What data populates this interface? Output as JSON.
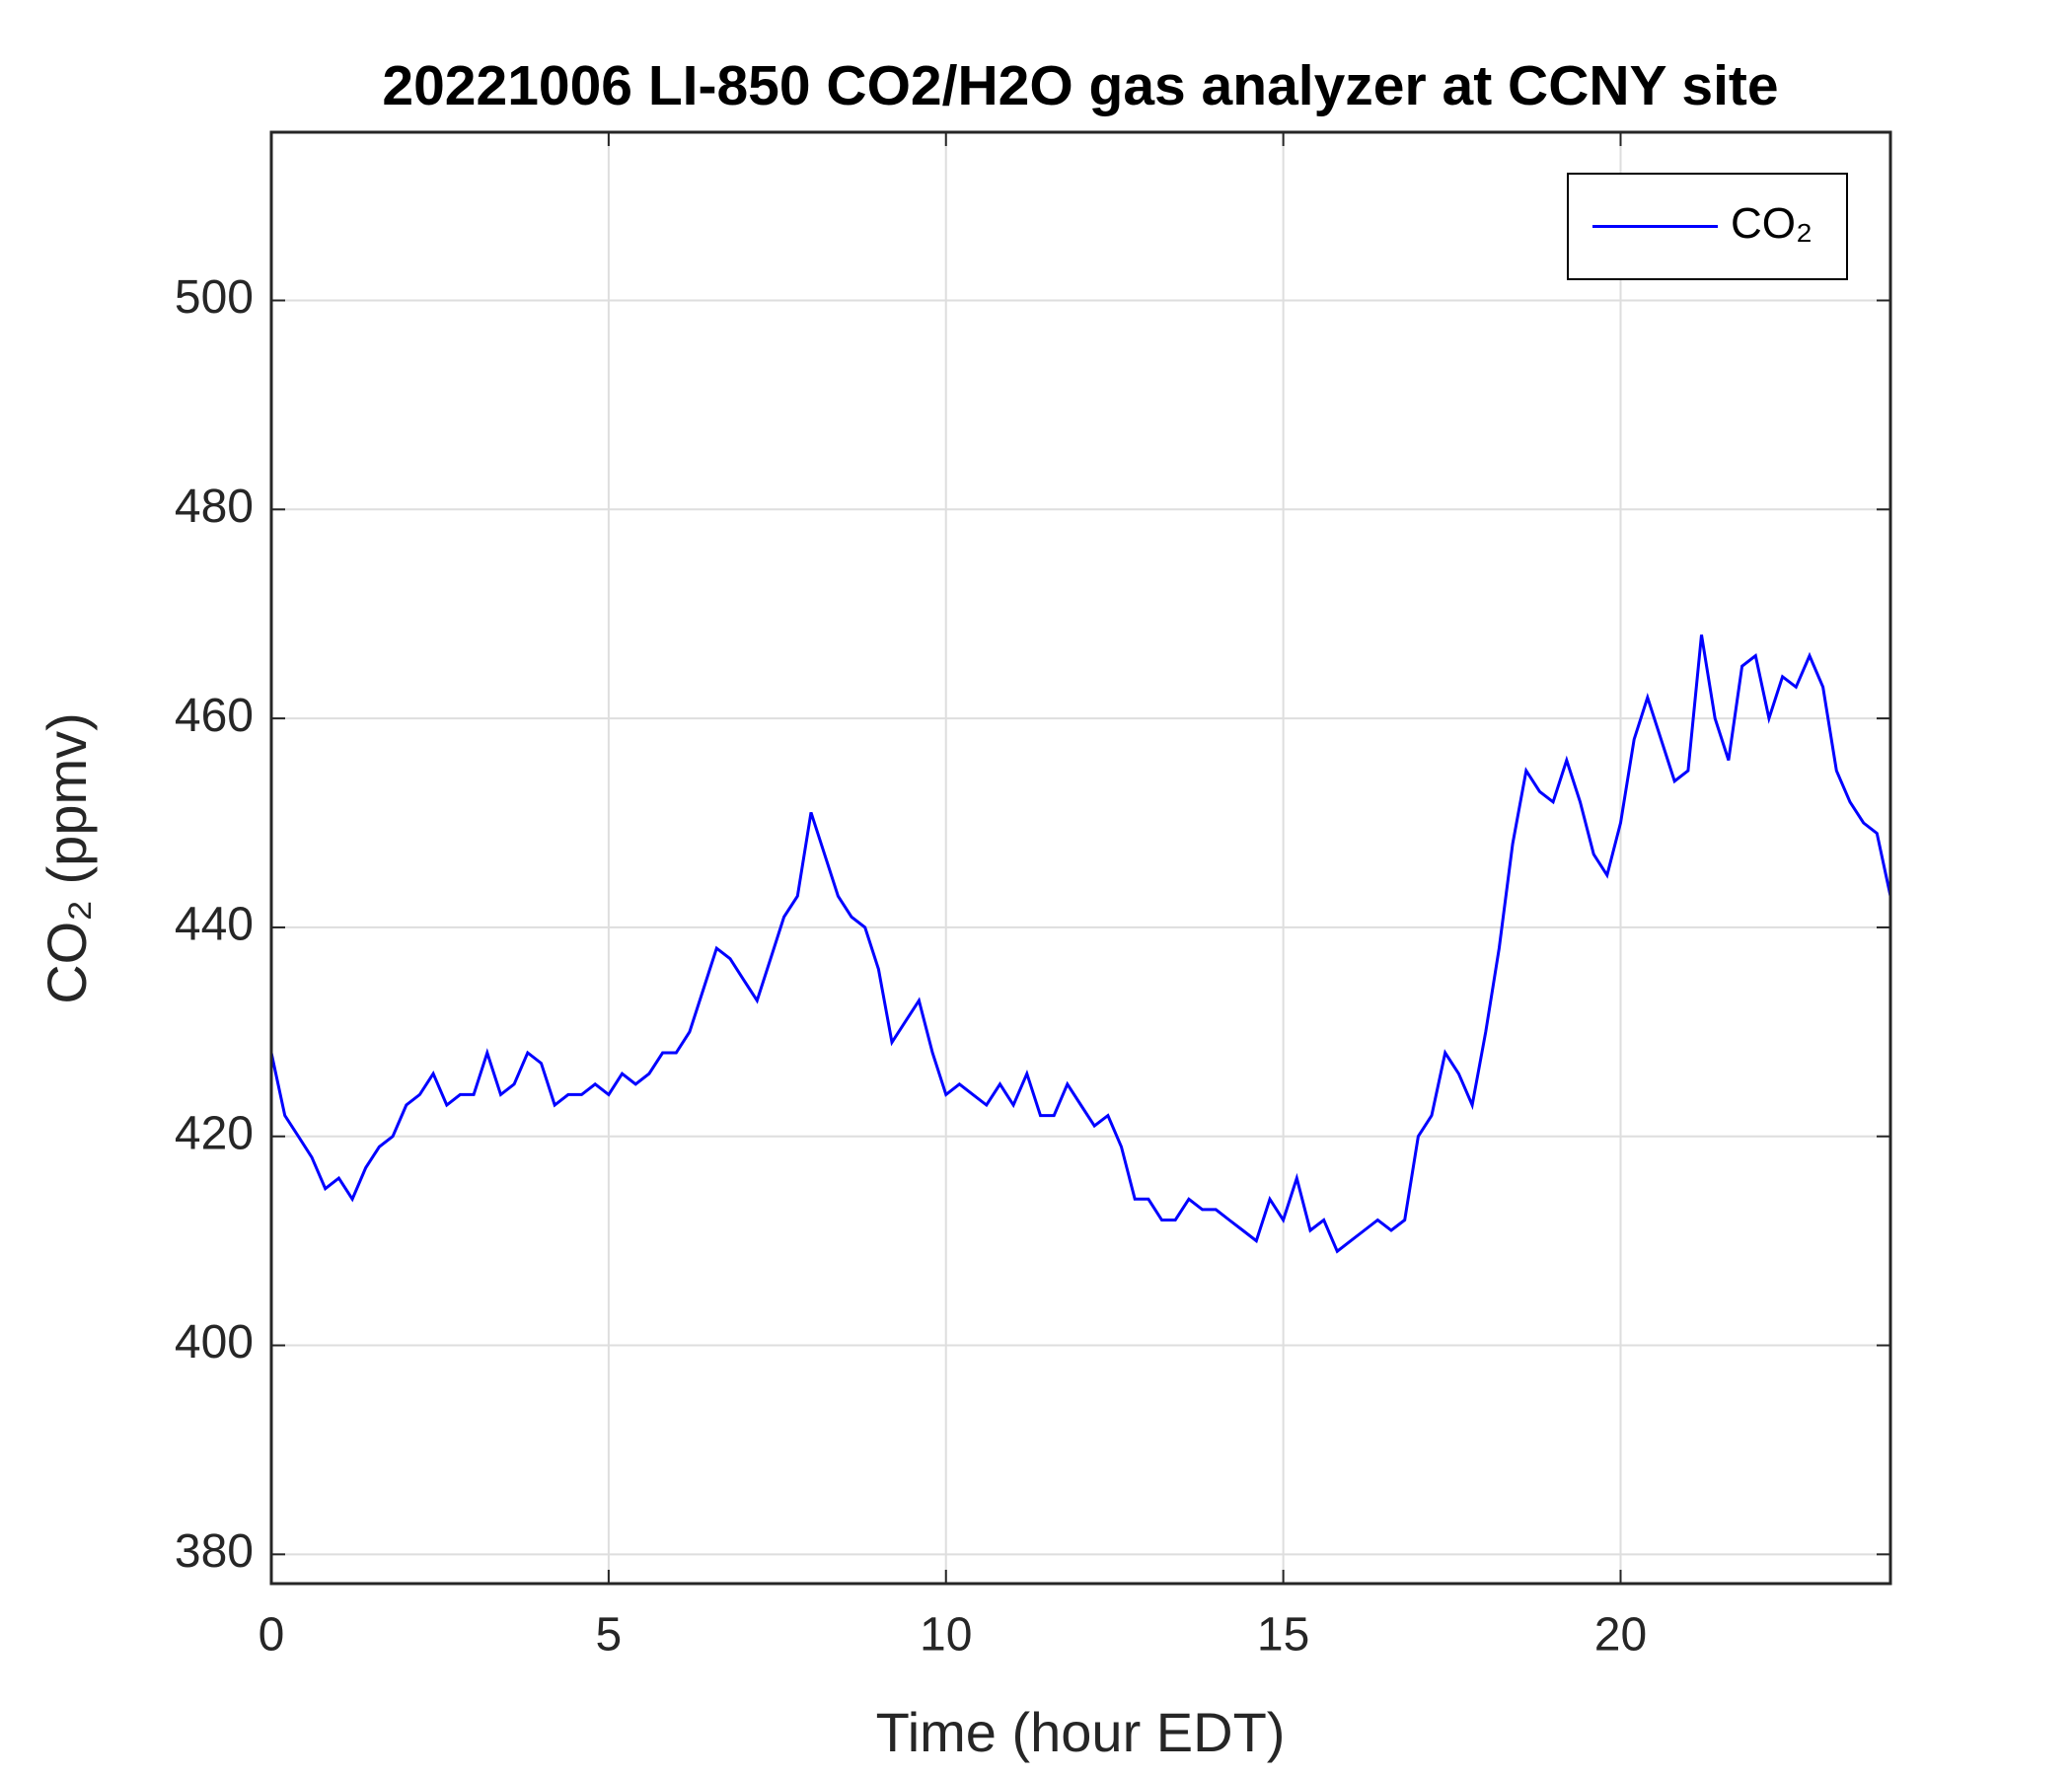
{
  "chart_data": {
    "type": "line",
    "title": "20221006 LI-850 CO2/H2O gas analyzer at CCNY site",
    "xlabel": "Time (hour EDT)",
    "ylabel": "CO₂ (ppmv)",
    "xlim": [
      0,
      24
    ],
    "xticks": [
      0,
      5,
      10,
      15,
      20
    ],
    "ylim": [
      377.2,
      516.1
    ],
    "yticks": [
      380,
      400,
      420,
      440,
      460,
      480,
      500
    ],
    "grid": true,
    "legend": "upper right",
    "x": [
      0,
      0.2,
      0.4,
      0.6,
      0.8,
      1,
      1.2,
      1.4,
      1.6,
      1.8,
      2,
      2.2,
      2.4,
      2.6,
      2.8,
      3,
      3.2,
      3.4,
      3.6,
      3.8,
      4,
      4.2,
      4.4,
      4.6,
      4.8,
      5,
      5.2,
      5.4,
      5.6,
      5.8,
      6,
      6.2,
      6.4,
      6.6,
      6.8,
      7,
      7.2,
      7.4,
      7.6,
      7.8,
      8,
      8.2,
      8.4,
      8.6,
      8.8,
      9,
      9.2,
      9.4,
      9.6,
      9.8,
      10,
      10.2,
      10.4,
      10.6,
      10.8,
      11,
      11.2,
      11.4,
      11.6,
      11.8,
      12,
      12.2,
      12.4,
      12.6,
      12.8,
      13,
      13.2,
      13.4,
      13.6,
      13.8,
      14,
      14.2,
      14.4,
      14.6,
      14.8,
      15,
      15.2,
      15.4,
      15.6,
      15.8,
      16,
      16.2,
      16.4,
      16.6,
      16.8,
      17,
      17.2,
      17.4,
      17.6,
      17.8,
      18,
      18.2,
      18.4,
      18.6,
      18.8,
      19,
      19.2,
      19.4,
      19.6,
      19.8,
      20,
      20.2,
      20.4,
      20.6,
      20.8,
      21,
      21.2,
      21.4,
      21.6,
      21.8,
      22,
      22.2,
      22.4,
      22.6,
      22.8,
      23,
      23.2,
      23.4,
      23.6,
      23.8,
      24
    ],
    "series": [
      {
        "name": "CO₂",
        "color": "#0000ff",
        "values": [
          428,
          422,
          420,
          418,
          415,
          416,
          414,
          417,
          419,
          420,
          423,
          424,
          426,
          423,
          424,
          424,
          428,
          424,
          425,
          428,
          427,
          423,
          424,
          424,
          425,
          424,
          426,
          425,
          426,
          428,
          428,
          430,
          434,
          438,
          437,
          435,
          433,
          437,
          441,
          443,
          451,
          447,
          443,
          441,
          440,
          436,
          429,
          431,
          433,
          428,
          424,
          425,
          424,
          423,
          425,
          423,
          426,
          422,
          422,
          425,
          423,
          421,
          422,
          419,
          414,
          414,
          412,
          412,
          414,
          413,
          413,
          412,
          411,
          410,
          414,
          412,
          416,
          411,
          412,
          409,
          410,
          411,
          412,
          411,
          412,
          420,
          422,
          428,
          426,
          423,
          430,
          438,
          448,
          455,
          453,
          452,
          456,
          452,
          447,
          445,
          450,
          458,
          462,
          458,
          454,
          455,
          468,
          460,
          456,
          465,
          466,
          460,
          464,
          463,
          466,
          463,
          455,
          452,
          450,
          449,
          443
        ]
      }
    ]
  }
}
